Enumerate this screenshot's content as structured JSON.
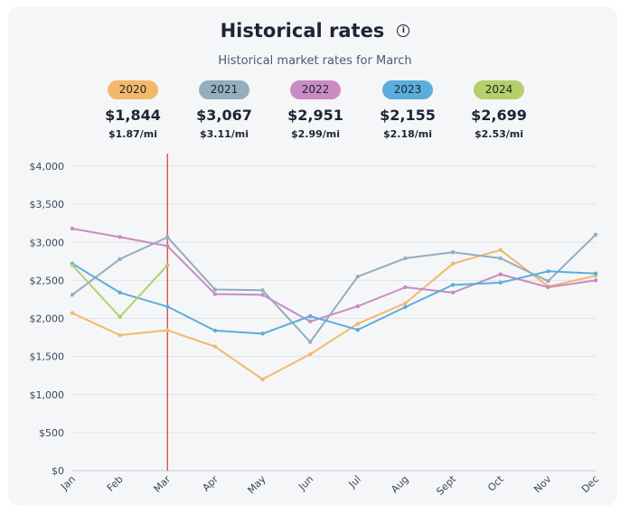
{
  "header": {
    "title": "Historical rates",
    "subtitle": "Historical market rates for March",
    "info_icon": "info-icon"
  },
  "legend": [
    {
      "year": "2020",
      "total": "$1,844",
      "per_mile": "$1.87/mi",
      "color": "#f2b96b"
    },
    {
      "year": "2021",
      "total": "$3,067",
      "per_mile": "$3.11/mi",
      "color": "#93aebd"
    },
    {
      "year": "2022",
      "total": "$2,951",
      "per_mile": "$2.99/mi",
      "color": "#c98cc2"
    },
    {
      "year": "2023",
      "total": "$2,155",
      "per_mile": "$2.18/mi",
      "color": "#5aaedb"
    },
    {
      "year": "2024",
      "total": "$2,699",
      "per_mile": "$2.53/mi",
      "color": "#b5cf6b"
    }
  ],
  "chart_data": {
    "type": "line",
    "title": "Historical rates",
    "subtitle": "Historical market rates for March",
    "xlabel": "",
    "ylabel": "",
    "ylim": [
      0,
      4000
    ],
    "yticks": [
      0,
      500,
      1000,
      1500,
      2000,
      2500,
      3000,
      3500,
      4000
    ],
    "ytick_labels": [
      "$0",
      "$500",
      "$1,000",
      "$1,500",
      "$2,000",
      "$2,500",
      "$3,000",
      "$3,500",
      "$4,000"
    ],
    "categories": [
      "Jan",
      "Feb",
      "Mar",
      "Apr",
      "May",
      "Jun",
      "Jul",
      "Aug",
      "Sept",
      "Oct",
      "Nov",
      "Dec"
    ],
    "highlight_category": "Mar",
    "highlight_color": "#e0453a",
    "grid": true,
    "series": [
      {
        "name": "2020",
        "color": "#f2b96b",
        "values": [
          2070,
          1780,
          1844,
          1630,
          1200,
          1530,
          1930,
          2200,
          2720,
          2900,
          2420,
          2560
        ]
      },
      {
        "name": "2021",
        "color": "#93aebd",
        "values": [
          2310,
          2780,
          3067,
          2380,
          2370,
          1690,
          2550,
          2790,
          2870,
          2790,
          2490,
          3100
        ]
      },
      {
        "name": "2022",
        "color": "#c98cc2",
        "values": [
          3180,
          3070,
          2951,
          2320,
          2310,
          1960,
          2160,
          2410,
          2340,
          2580,
          2410,
          2500
        ]
      },
      {
        "name": "2023",
        "color": "#5aaedb",
        "values": [
          2720,
          2340,
          2155,
          1840,
          1800,
          2030,
          1850,
          2150,
          2440,
          2470,
          2620,
          2590
        ]
      },
      {
        "name": "2024",
        "color": "#b5cf6b",
        "values": [
          2700,
          2020,
          2699,
          null,
          null,
          null,
          null,
          null,
          null,
          null,
          null,
          null
        ]
      }
    ]
  }
}
